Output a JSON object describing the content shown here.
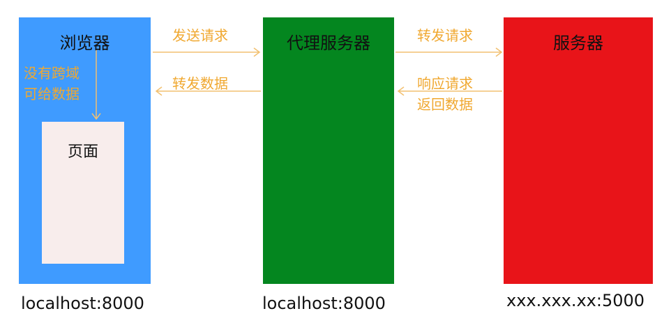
{
  "colors": {
    "browser": "#3f9bff",
    "proxy": "#04861f",
    "server": "#e81419",
    "page": "#f8edec",
    "arrow": "#f2c070",
    "label": "#f0a830"
  },
  "browser": {
    "title": "浏览器",
    "address": "localhost:8000",
    "page_label": "页面",
    "note_line1": "没有跨域",
    "note_line2": "可给数据"
  },
  "proxy": {
    "title": "代理服务器",
    "address": "localhost:8000"
  },
  "server": {
    "title": "服务器",
    "address": "xxx.xxx.xx:5000"
  },
  "arrows": {
    "browser_to_proxy": "发送请求",
    "proxy_to_browser": "转发数据",
    "proxy_to_server": "转发请求",
    "server_to_proxy_line1": "响应请求",
    "server_to_proxy_line2": "返回数据"
  }
}
